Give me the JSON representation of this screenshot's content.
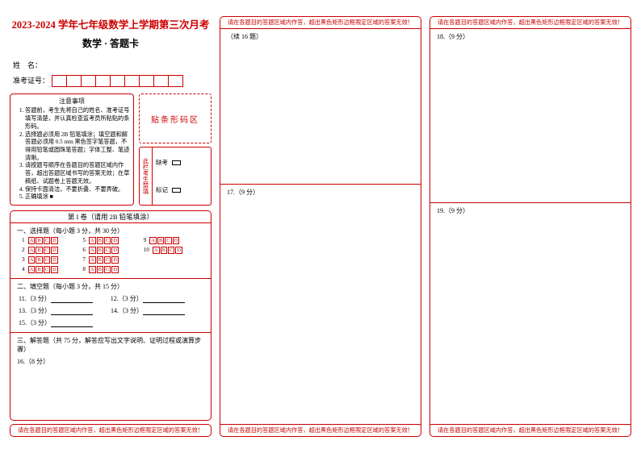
{
  "header": {
    "title": "2023-2024 学年七年级数学上学期第三次月考",
    "subtitle": "数学 · 答题卡"
  },
  "info": {
    "name_label": "姓　名：",
    "id_label": "准考证号：",
    "id_cells": 9
  },
  "instructions": {
    "title": "注意事项",
    "items": [
      "答题前，考生先将自己的姓名、准考证号填写清楚，并认真检查监考员所粘贴的条形码。",
      "选择题必须用 2B 铅笔填涂；填空题和解答题必须用 0.5 mm 黑色签字笔答题，不得用铅笔或圆珠笔答题；字体工整、笔迹清晰。",
      "请按题号顺序在各题目的答题区域内作答，超出答题区域书写的答案无效；在草稿纸、试题卷上答题无效。",
      "保持卡面清洁，不要折叠、不要弄破。",
      "正确填涂 ■"
    ]
  },
  "barcode": {
    "label": "贴条形码区"
  },
  "nofill": {
    "side_label": "此栏考生禁填",
    "absent_label": "缺考",
    "mark_label": "标记"
  },
  "part1": {
    "title": "第 I 卷（请用 2B 铅笔填涂）",
    "mc": {
      "heading": "一、选择题（每小题 3 分，共 30 分）",
      "rows": [
        [
          1,
          5,
          9
        ],
        [
          2,
          6,
          10
        ],
        [
          3,
          7,
          null
        ],
        [
          4,
          8,
          null
        ]
      ],
      "options": [
        "A",
        "B",
        "C",
        "D"
      ]
    },
    "fill": {
      "heading": "二、填空题（每小题 3 分，共 15 分）",
      "rows": [
        [
          {
            "n": 11,
            "pts": "3 分"
          },
          {
            "n": 12,
            "pts": "3 分"
          }
        ],
        [
          {
            "n": 13,
            "pts": "3 分"
          },
          {
            "n": 14,
            "pts": "3 分"
          }
        ],
        [
          {
            "n": 15,
            "pts": "3 分"
          }
        ]
      ]
    },
    "answer": {
      "heading": "三、解答题（共 75 分，解答应写出文字说明、证明过程或演算步骤）",
      "first": "16.（8 分）"
    }
  },
  "warning_text": "请在各题目的答题区域内作答，超出黑色矩形边框限定区域的答案无效！",
  "col2": {
    "cont": "（续 16 题）",
    "q17": "17.（9 分）"
  },
  "col3": {
    "q18": "18.（9 分）",
    "q19": "19.（9 分）"
  }
}
